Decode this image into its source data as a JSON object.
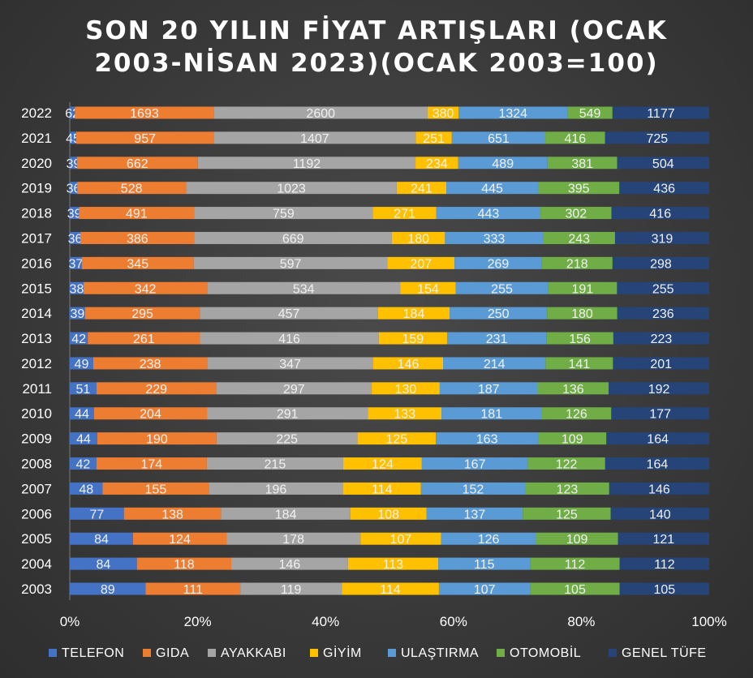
{
  "chart_data": {
    "type": "bar",
    "orientation": "horizontal",
    "stacking": "percent",
    "title_lines": [
      "SON 20 YILIN FİYAT ARTIŞLARI (OCAK",
      "2003-NİSAN 2023)(OCAK 2003=100)"
    ],
    "categories": [
      "2003",
      "2004",
      "2005",
      "2006",
      "2007",
      "2008",
      "2009",
      "2010",
      "2011",
      "2012",
      "2013",
      "2014",
      "2015",
      "2016",
      "2017",
      "2018",
      "2019",
      "2020",
      "2021",
      "2022"
    ],
    "x_ticks": [
      "0%",
      "20%",
      "40%",
      "60%",
      "80%",
      "100%"
    ],
    "xlim": [
      0,
      100
    ],
    "grid": false,
    "legend_position": "bottom",
    "series": [
      {
        "name": "TELEFON",
        "color": "#4472c4",
        "values": [
          89,
          84,
          84,
          77,
          48,
          42,
          44,
          44,
          51,
          49,
          42,
          39,
          38,
          37,
          36,
          39,
          36,
          39,
          45,
          62
        ]
      },
      {
        "name": "GIDA",
        "color": "#ed7d31",
        "values": [
          111,
          118,
          124,
          138,
          155,
          174,
          190,
          204,
          229,
          238,
          261,
          295,
          342,
          345,
          386,
          491,
          528,
          662,
          957,
          1693
        ]
      },
      {
        "name": "AYAKKABI",
        "color": "#a5a5a5",
        "values": [
          119,
          146,
          178,
          184,
          196,
          215,
          225,
          291,
          297,
          347,
          416,
          457,
          534,
          597,
          669,
          759,
          1023,
          1192,
          1407,
          2600
        ]
      },
      {
        "name": "GİYİM",
        "color": "#ffc000",
        "values": [
          114,
          113,
          107,
          108,
          114,
          124,
          125,
          133,
          130,
          146,
          159,
          184,
          154,
          207,
          180,
          271,
          241,
          234,
          251,
          380
        ]
      },
      {
        "name": "ULAŞTIRMA",
        "color": "#5b9bd5",
        "values": [
          107,
          115,
          126,
          137,
          152,
          167,
          163,
          181,
          187,
          214,
          231,
          250,
          255,
          269,
          333,
          443,
          445,
          489,
          651,
          1324
        ]
      },
      {
        "name": "OTOMOBİL",
        "color": "#70ad47",
        "values": [
          105,
          112,
          109,
          125,
          123,
          122,
          109,
          126,
          136,
          141,
          156,
          180,
          191,
          218,
          243,
          302,
          395,
          381,
          416,
          549
        ]
      },
      {
        "name": "GENEL TÜFE",
        "color": "#264478",
        "values": [
          105,
          112,
          121,
          140,
          146,
          164,
          164,
          177,
          192,
          201,
          223,
          236,
          255,
          298,
          319,
          416,
          436,
          504,
          725,
          1177
        ]
      }
    ]
  }
}
